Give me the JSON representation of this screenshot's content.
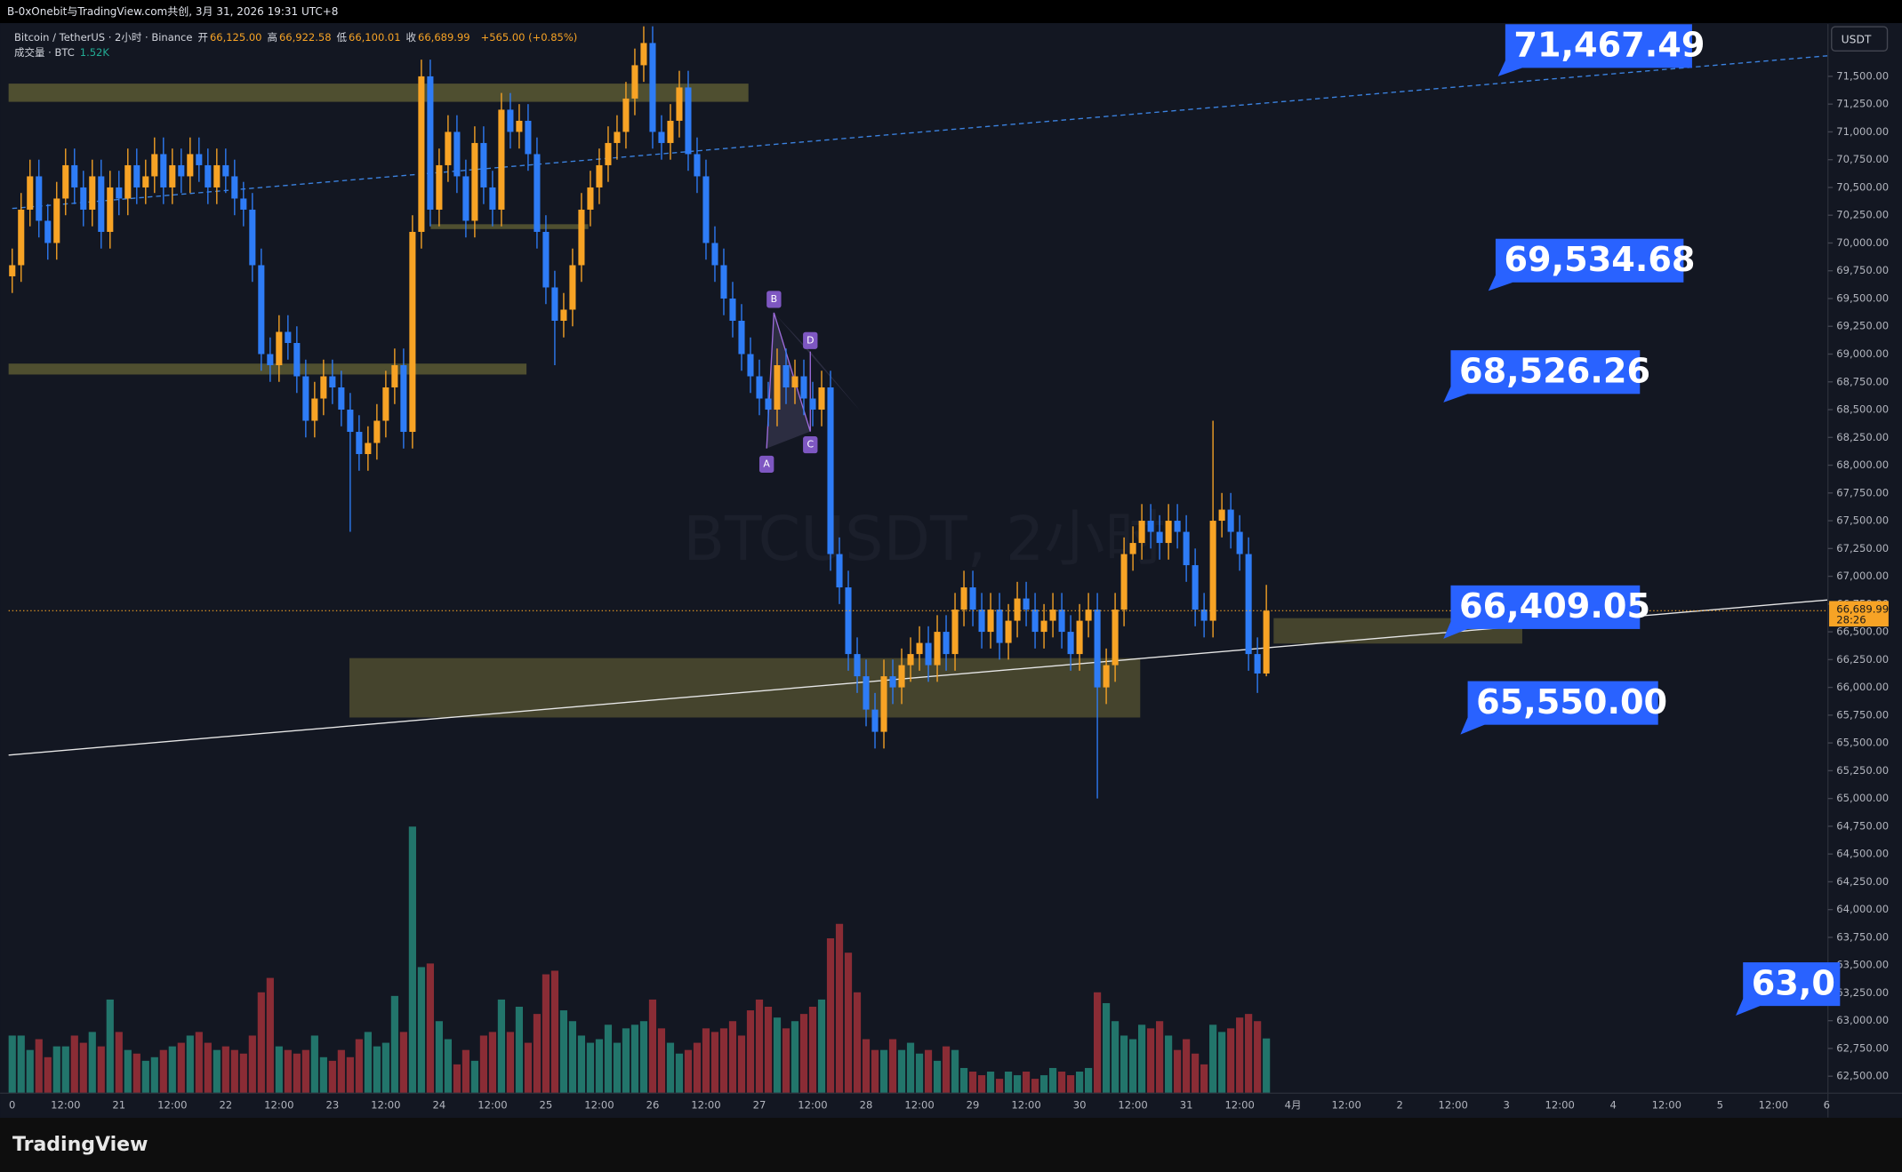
{
  "header": "B-0xOnebit与TradingView.com共创, 3月 31, 2026 19:31 UTC+8",
  "chart_data": {
    "type": "candlestick",
    "symbol_line": "Bitcoin / TetherUS · 2小时 · Binance",
    "ohlc_legend": [
      {
        "label": "开",
        "value": "66,125.00"
      },
      {
        "label": "高",
        "value": "66,922.58"
      },
      {
        "label": "低",
        "value": "66,100.01"
      },
      {
        "label": "收",
        "value": "66,689.99"
      }
    ],
    "change": "+565.00 (+0.85%)",
    "volume_legend": "成交量 · BTC",
    "volume_value": "1.52K",
    "watermark": "BTCUSDT, 2小时",
    "currency": "USDT",
    "last_price": {
      "value": 66689.99,
      "label": "66,689.99"
    },
    "countdown": "28:26",
    "up_color": "#f7a325",
    "down_color": "#2e7cf6",
    "volume_up_color": "#22756b",
    "volume_down_color": "#8a2c35",
    "open": [
      69700,
      69800,
      70300,
      70600,
      70200,
      70000,
      70400,
      70700,
      70500,
      70300,
      70600,
      70100,
      70500,
      70400,
      70700,
      70500,
      70600,
      70800,
      70500,
      70700,
      70600,
      70800,
      70700,
      70500,
      70700,
      70600,
      70400,
      70300,
      69800,
      69000,
      68900,
      69200,
      69100,
      68800,
      68400,
      68600,
      68800,
      68700,
      68500,
      68300,
      68100,
      68200,
      68400,
      68700,
      68900,
      68300,
      70100,
      71500,
      70300,
      70700,
      71000,
      70600,
      70200,
      70900,
      70500,
      70300,
      71200,
      71000,
      71100,
      70800,
      70100,
      69600,
      69300,
      69400,
      69800,
      70300,
      70500,
      70700,
      70900,
      71000,
      71300,
      71600,
      71800,
      71000,
      70900,
      71100,
      71400,
      70800,
      70600,
      70000,
      69800,
      69500,
      69300,
      69000,
      68800,
      68600,
      68500,
      68900,
      68700,
      68800,
      68600,
      68500,
      68700,
      67200,
      66900,
      66300,
      66100,
      65800,
      65600,
      66100,
      66000,
      66200,
      66300,
      66400,
      66200,
      66500,
      66300,
      66700,
      66900,
      66700,
      66500,
      66700,
      66400,
      66600,
      66800,
      66700,
      66500,
      66600,
      66700,
      66500,
      66300,
      66600,
      66700,
      66000,
      66200,
      66700,
      67200,
      67300,
      67500,
      67400,
      67300,
      67500,
      67400,
      67100,
      66700,
      66600,
      67500,
      67600,
      67400,
      67200,
      66300,
      66125
    ],
    "high": [
      69950,
      70450,
      70750,
      70750,
      70350,
      70550,
      70850,
      70850,
      70650,
      70750,
      70750,
      70650,
      70650,
      70850,
      70850,
      70750,
      70950,
      70950,
      70850,
      70850,
      70950,
      70950,
      70850,
      70850,
      70850,
      70750,
      70550,
      70450,
      69950,
      69150,
      69350,
      69350,
      69250,
      68950,
      68750,
      68950,
      68950,
      68850,
      68650,
      68450,
      68350,
      68550,
      68850,
      69050,
      69050,
      70250,
      71650,
      71650,
      70850,
      71150,
      71150,
      70750,
      71050,
      71050,
      70650,
      71350,
      71350,
      71250,
      71250,
      70950,
      70250,
      69750,
      69550,
      69950,
      70450,
      70650,
      70850,
      71050,
      71150,
      71450,
      71750,
      71950,
      71950,
      71150,
      71250,
      71550,
      71550,
      70950,
      70750,
      70150,
      69950,
      69650,
      69450,
      69150,
      68950,
      68750,
      69050,
      69050,
      68950,
      68950,
      68750,
      68850,
      68850,
      67350,
      67050,
      66450,
      66250,
      65950,
      66250,
      66250,
      66350,
      66450,
      66550,
      66550,
      66650,
      66650,
      66850,
      67050,
      67050,
      66850,
      66850,
      66850,
      66750,
      66950,
      66950,
      66850,
      66750,
      66850,
      66850,
      66650,
      66750,
      66850,
      66850,
      66350,
      66850,
      67350,
      67450,
      67650,
      67650,
      67550,
      67650,
      67650,
      67550,
      67250,
      66850,
      68400,
      67750,
      67750,
      67550,
      67350,
      66450,
      66922.58
    ],
    "low": [
      69550,
      69650,
      70150,
      70050,
      69850,
      69850,
      70250,
      70350,
      70150,
      70150,
      69950,
      69950,
      70250,
      70250,
      70350,
      70350,
      70450,
      70350,
      70350,
      70450,
      70450,
      70550,
      70350,
      70350,
      70450,
      70250,
      70150,
      69650,
      68850,
      68750,
      68750,
      68950,
      68650,
      68250,
      68250,
      68450,
      68550,
      68350,
      67400,
      67950,
      67950,
      68050,
      68250,
      68550,
      68150,
      68150,
      69950,
      70150,
      70150,
      70550,
      70450,
      70050,
      70050,
      70350,
      70150,
      70150,
      70850,
      70850,
      70650,
      69950,
      69450,
      68900,
      69150,
      69250,
      69650,
      70150,
      70350,
      70550,
      70750,
      70850,
      71150,
      71450,
      70850,
      70750,
      70750,
      70950,
      70650,
      70450,
      69850,
      69650,
      69350,
      69150,
      68850,
      68650,
      68450,
      68350,
      68350,
      68550,
      68550,
      68450,
      68350,
      68350,
      67050,
      66750,
      66150,
      65950,
      65650,
      65450,
      65450,
      65850,
      65850,
      66050,
      66150,
      66050,
      66050,
      66150,
      66150,
      66550,
      66550,
      66350,
      66350,
      66250,
      66250,
      66450,
      66550,
      66350,
      66350,
      66450,
      66350,
      66150,
      66150,
      66450,
      65000,
      65850,
      66050,
      66550,
      67050,
      67150,
      67250,
      67150,
      67150,
      67250,
      66950,
      66550,
      66450,
      66450,
      67350,
      67250,
      67050,
      66150,
      65950,
      66100.01
    ],
    "close": [
      69800,
      70300,
      70600,
      70200,
      70000,
      70400,
      70700,
      70500,
      70300,
      70600,
      70100,
      70500,
      70400,
      70700,
      70500,
      70600,
      70800,
      70500,
      70700,
      70600,
      70800,
      70700,
      70500,
      70700,
      70600,
      70400,
      70300,
      69800,
      69000,
      68900,
      69200,
      69100,
      68800,
      68400,
      68600,
      68800,
      68700,
      68500,
      68300,
      68100,
      68200,
      68400,
      68700,
      68900,
      68300,
      70100,
      71500,
      70300,
      70700,
      71000,
      70600,
      70200,
      70900,
      70500,
      70300,
      71200,
      71000,
      71100,
      70800,
      70100,
      69600,
      69300,
      69400,
      69800,
      70300,
      70500,
      70700,
      70900,
      71000,
      71300,
      71600,
      71800,
      71000,
      70900,
      71100,
      71400,
      70800,
      70600,
      70000,
      69800,
      69500,
      69300,
      69000,
      68800,
      68600,
      68500,
      68900,
      68700,
      68800,
      68600,
      68500,
      68700,
      67200,
      66900,
      66300,
      66100,
      65800,
      65600,
      66100,
      66000,
      66200,
      66300,
      66400,
      66200,
      66500,
      66300,
      66700,
      66900,
      66700,
      66500,
      66700,
      66400,
      66600,
      66800,
      66700,
      66500,
      66600,
      66700,
      66500,
      66300,
      66600,
      66700,
      66000,
      66200,
      66700,
      67200,
      67300,
      67500,
      67400,
      67300,
      67500,
      67400,
      67100,
      66700,
      66600,
      67500,
      67600,
      67400,
      67200,
      66300,
      66125,
      66689.99
    ],
    "volume": [
      1600,
      1600,
      1200,
      1500,
      1000,
      1300,
      1300,
      1600,
      1400,
      1700,
      1300,
      2600,
      1700,
      1200,
      1100,
      900,
      1000,
      1200,
      1300,
      1400,
      1600,
      1700,
      1400,
      1200,
      1300,
      1200,
      1100,
      1600,
      2800,
      3200,
      1300,
      1200,
      1100,
      1200,
      1600,
      1000,
      900,
      1200,
      1000,
      1500,
      1700,
      1300,
      1400,
      2700,
      1700,
      7400,
      3500,
      3600,
      2000,
      1500,
      800,
      1200,
      900,
      1600,
      1700,
      2600,
      1700,
      2400,
      1400,
      2200,
      3300,
      3400,
      2300,
      2000,
      1600,
      1400,
      1500,
      1900,
      1400,
      1800,
      1900,
      2000,
      2600,
      1800,
      1400,
      1100,
      1200,
      1400,
      1800,
      1700,
      1800,
      2000,
      1600,
      2300,
      2600,
      2400,
      2100,
      1800,
      2000,
      2200,
      2400,
      2600,
      4300,
      4700,
      3900,
      2800,
      1500,
      1200,
      1200,
      1500,
      1200,
      1400,
      1100,
      1200,
      900,
      1300,
      1200,
      700,
      600,
      500,
      600,
      400,
      600,
      500,
      600,
      400,
      500,
      700,
      600,
      500,
      600,
      700,
      2800,
      2500,
      2000,
      1600,
      1500,
      1900,
      1800,
      2000,
      1600,
      1200,
      1500,
      1100,
      800,
      1900,
      1700,
      1800,
      2100,
      2200,
      2000,
      1520
    ],
    "ylim": [
      62347,
      71969
    ],
    "yticks": [
      {
        "value": 62500,
        "label": "62,500.00"
      },
      {
        "value": 62750,
        "label": "62,750.00"
      },
      {
        "value": 63000,
        "label": "63,000.00"
      },
      {
        "value": 63250,
        "label": "63,250.00"
      },
      {
        "value": 63500,
        "label": "63,500.00"
      },
      {
        "value": 63750,
        "label": "63,750.00"
      },
      {
        "value": 64000,
        "label": "64,000.00"
      },
      {
        "value": 64250,
        "label": "64,250.00"
      },
      {
        "value": 64500,
        "label": "64,500.00"
      },
      {
        "value": 64750,
        "label": "64,750.00"
      },
      {
        "value": 65000,
        "label": "65,000.00"
      },
      {
        "value": 65250,
        "label": "65,250.00"
      },
      {
        "value": 65500,
        "label": "65,500.00"
      },
      {
        "value": 65750,
        "label": "65,750.00"
      },
      {
        "value": 66000,
        "label": "66,000.00"
      },
      {
        "value": 66250,
        "label": "66,250.00"
      },
      {
        "value": 66500,
        "label": "66,500.00"
      },
      {
        "value": 66750,
        "label": "66,750.00"
      },
      {
        "value": 67000,
        "label": "67,000.00"
      },
      {
        "value": 67250,
        "label": "67,250.00"
      },
      {
        "value": 67500,
        "label": "67,500.00"
      },
      {
        "value": 67750,
        "label": "67,750.00"
      },
      {
        "value": 68000,
        "label": "68,000.00"
      },
      {
        "value": 68250,
        "label": "68,250.00"
      },
      {
        "value": 68500,
        "label": "68,500.00"
      },
      {
        "value": 68750,
        "label": "68,750.00"
      },
      {
        "value": 69000,
        "label": "69,000.00"
      },
      {
        "value": 69250,
        "label": "69,250.00"
      },
      {
        "value": 69500,
        "label": "69,500.00"
      },
      {
        "value": 69750,
        "label": "69,750.00"
      },
      {
        "value": 70000,
        "label": "70,000.00"
      },
      {
        "value": 70250,
        "label": "70,250.00"
      },
      {
        "value": 70500,
        "label": "70,500.00"
      },
      {
        "value": 70750,
        "label": "70,750.00"
      },
      {
        "value": 71000,
        "label": "71,000.00"
      },
      {
        "value": 71250,
        "label": "71,250.00"
      },
      {
        "value": 71500,
        "label": "71,500.00"
      }
    ],
    "xlabels": [
      "0",
      "12:00",
      "21",
      "12:00",
      "22",
      "12:00",
      "23",
      "12:00",
      "24",
      "12:00",
      "25",
      "12:00",
      "26",
      "12:00",
      "27",
      "12:00",
      "28",
      "12:00",
      "29",
      "12:00",
      "30",
      "12:00",
      "31",
      "12:00",
      "4月",
      "12:00",
      "2",
      "12:00",
      "3",
      "12:00",
      "4",
      "12:00",
      "5",
      "12:00",
      "6"
    ],
    "annotations": [
      "71,467.49",
      "69,534.68",
      "68,526.26",
      "66,409.05",
      "65,550.00",
      "63,0"
    ],
    "pattern_labels": [
      "A",
      "B",
      "C",
      "D"
    ]
  },
  "logo": "TradingView"
}
